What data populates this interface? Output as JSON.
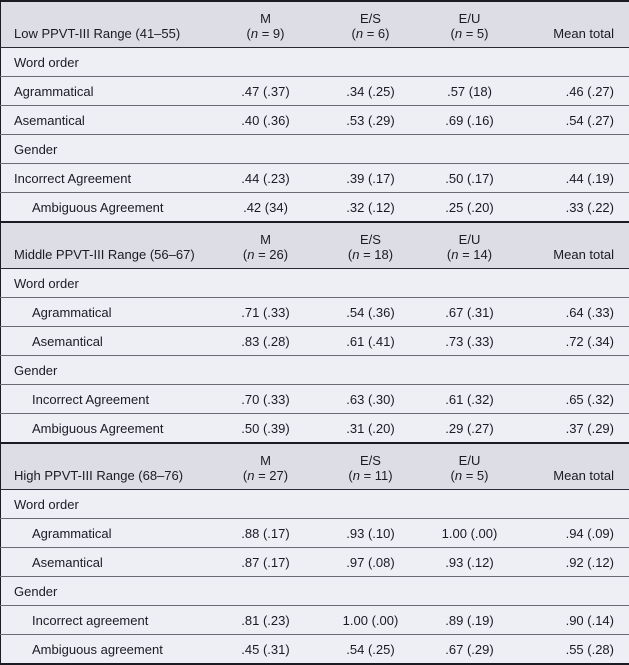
{
  "colors": {
    "header_bg": "#dcdde5",
    "row_bg": "#eeeef5",
    "border_dark": "#1b1b24",
    "divider": "#6b6b76",
    "text": "#1b1b23"
  },
  "table": {
    "sections": [
      {
        "title": "Low PPVT-III Range (41–55)",
        "groups": [
          {
            "name": "M",
            "n": "9"
          },
          {
            "name": "E/S",
            "n": "6"
          },
          {
            "name": "E/U",
            "n": "5"
          }
        ],
        "mean_header": "Mean total",
        "rows": [
          {
            "type": "subheader",
            "label": "Word order"
          },
          {
            "type": "data",
            "indent": false,
            "label": "Agrammatical",
            "values": [
              ".47 (.37)",
              ".34 (.25)",
              ".57 (18)",
              ".46 (.27)"
            ]
          },
          {
            "type": "data",
            "indent": false,
            "label": "Asemantical",
            "values": [
              ".40 (.36)",
              ".53 (.29)",
              ".69 (.16)",
              ".54 (.27)"
            ]
          },
          {
            "type": "subheader",
            "label": "Gender"
          },
          {
            "type": "data",
            "indent": false,
            "label": "Incorrect Agreement",
            "values": [
              ".44 (.23)",
              ".39 (.17)",
              ".50 (.17)",
              ".44 (.19)"
            ]
          },
          {
            "type": "data",
            "indent": true,
            "label": "Ambiguous Agreement",
            "values": [
              ".42 (34)",
              ".32 (.12)",
              ".25 (.20)",
              ".33 (.22)"
            ]
          }
        ]
      },
      {
        "title": "Middle PPVT-III Range (56–67)",
        "groups": [
          {
            "name": "M",
            "n": "26"
          },
          {
            "name": "E/S",
            "n": "18"
          },
          {
            "name": "E/U",
            "n": "14"
          }
        ],
        "mean_header": "Mean total",
        "rows": [
          {
            "type": "subheader",
            "label": "Word order"
          },
          {
            "type": "data",
            "indent": true,
            "label": "Agrammatical",
            "values": [
              ".71 (.33)",
              ".54 (.36)",
              ".67 (.31)",
              ".64 (.33)"
            ]
          },
          {
            "type": "data",
            "indent": true,
            "label": "Asemantical",
            "values": [
              ".83 (.28)",
              ".61 (.41)",
              ".73 (.33)",
              ".72 (.34)"
            ]
          },
          {
            "type": "subheader",
            "label": "Gender"
          },
          {
            "type": "data",
            "indent": true,
            "label": "Incorrect Agreement",
            "values": [
              ".70 (.33)",
              ".63 (.30)",
              ".61 (.32)",
              ".65 (.32)"
            ]
          },
          {
            "type": "data",
            "indent": true,
            "label": "Ambiguous Agreement",
            "values": [
              ".50 (.39)",
              ".31 (.20)",
              ".29 (.27)",
              ".37 (.29)"
            ]
          }
        ]
      },
      {
        "title": "High PPVT-III Range (68–76)",
        "groups": [
          {
            "name": "M",
            "n": "27"
          },
          {
            "name": "E/S",
            "n": "11"
          },
          {
            "name": "E/U",
            "n": "5"
          }
        ],
        "mean_header": "Mean total",
        "rows": [
          {
            "type": "subheader",
            "label": "Word order"
          },
          {
            "type": "data",
            "indent": true,
            "label": "Agrammatical",
            "values": [
              ".88 (.17)",
              ".93 (.10)",
              "1.00 (.00)",
              ".94 (.09)"
            ]
          },
          {
            "type": "data",
            "indent": true,
            "label": "Asemantical",
            "values": [
              ".87 (.17)",
              ".97 (.08)",
              ".93 (.12)",
              ".92 (.12)"
            ]
          },
          {
            "type": "subheader",
            "label": "Gender"
          },
          {
            "type": "data",
            "indent": true,
            "label": "Incorrect agreement",
            "values": [
              ".81 (.23)",
              "1.00 (.00)",
              ".89 (.19)",
              ".90 (.14)"
            ]
          },
          {
            "type": "data",
            "indent": true,
            "label": "Ambiguous agreement",
            "values": [
              ".45 (.31)",
              ".54 (.25)",
              ".67 (.29)",
              ".55 (.28)"
            ]
          }
        ]
      }
    ]
  }
}
